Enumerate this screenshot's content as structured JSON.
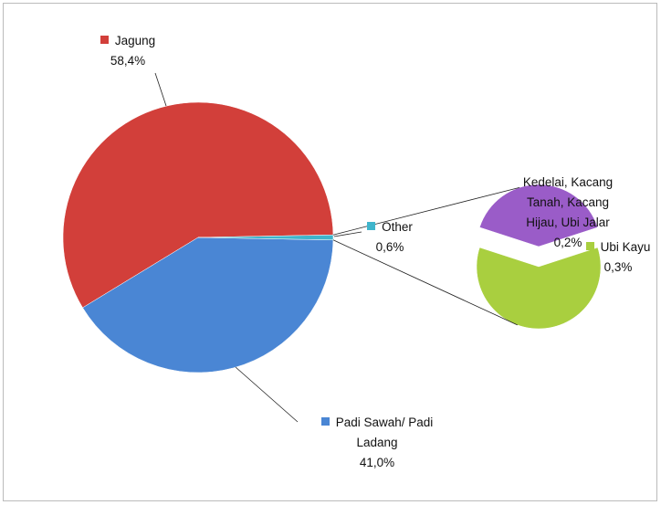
{
  "chart_data": {
    "type": "pie",
    "categories": [
      "Jagung",
      "Padi Sawah/ Padi Ladang",
      "Other"
    ],
    "values": [
      58.4,
      41.0,
      0.6
    ],
    "value_labels": [
      "58,4%",
      "41,0%",
      "0,6%"
    ],
    "colors": [
      "#d23f3a",
      "#4a86d4",
      "#3fb5cc"
    ],
    "breakout": {
      "categories": [
        "Kedelai, Kacang Tanah, Kacang Hijau, Ubi Jalar",
        "Ubi Kayu"
      ],
      "values": [
        0.2,
        0.3
      ],
      "value_labels": [
        "0,2%",
        "0,3%"
      ],
      "colors": [
        "#9a5cc8",
        "#a9cf3f"
      ]
    }
  }
}
